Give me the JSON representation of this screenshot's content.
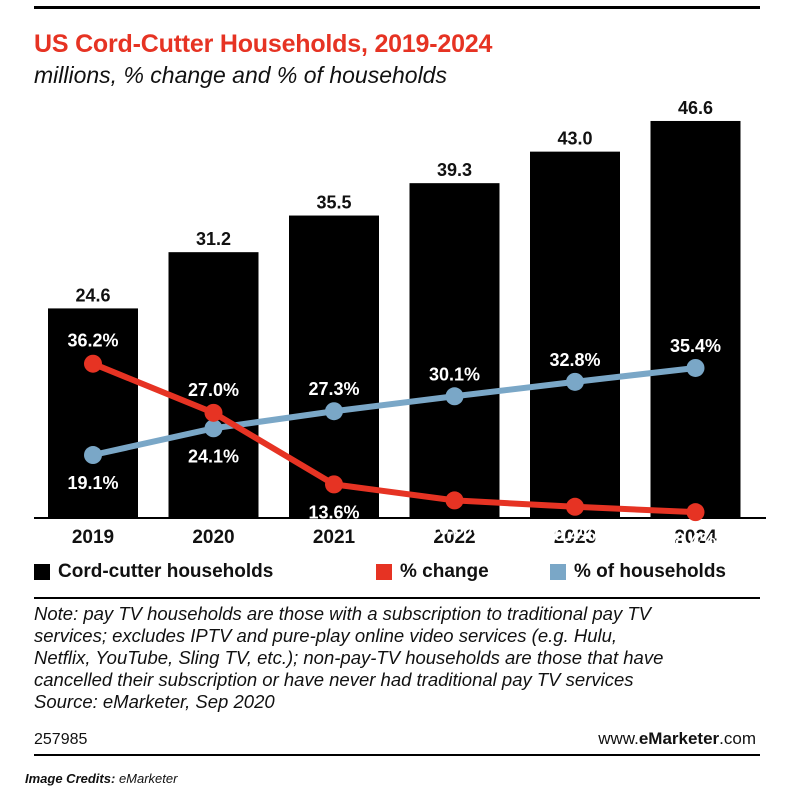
{
  "title": "US Cord-Cutter Households, 2019-2024",
  "subtitle": "millions, % change and % of households",
  "chart_data": {
    "type": "bar",
    "categories": [
      "2019",
      "2020",
      "2021",
      "2022",
      "2023",
      "2024"
    ],
    "series": [
      {
        "name": "Cord-cutter households",
        "kind": "bar",
        "color": "#000000",
        "values": [
          24.6,
          31.2,
          35.5,
          39.3,
          43.0,
          46.6
        ],
        "labels": [
          "24.6",
          "31.2",
          "35.5",
          "39.3",
          "43.0",
          "46.6"
        ]
      },
      {
        "name": "% change",
        "kind": "line",
        "color": "#e63323",
        "values": [
          36.2,
          27.0,
          13.6,
          10.6,
          9.4,
          8.4
        ],
        "labels": [
          "36.2%",
          "27.0%",
          "13.6%",
          "10.6%",
          "9.4%",
          "8.4%"
        ]
      },
      {
        "name": "% of households",
        "kind": "line",
        "color": "#7aa7c7",
        "values": [
          19.1,
          24.1,
          27.3,
          30.1,
          32.8,
          35.4
        ],
        "labels": [
          "19.1%",
          "24.1%",
          "27.3%",
          "30.1%",
          "32.8%",
          "35.4%"
        ]
      }
    ],
    "bar_ylim": [
      0,
      50
    ],
    "pct_ylim": [
      0,
      50
    ],
    "xlabel": "",
    "ylabel": ""
  },
  "legend": {
    "bars": "Cord-cutter households",
    "change": "% change",
    "share": "% of households"
  },
  "note_lines": [
    "Note: pay TV households are those with a subscription to traditional pay TV",
    "services; excludes IPTV and pure-play online video services (e.g. Hulu,",
    "Netflix, YouTube, Sling TV, etc.); non-pay-TV households are those that have",
    "cancelled their subscription or have never had traditional pay TV services",
    "Source: eMarketer, Sep 2020"
  ],
  "chart_id": "257985",
  "brand": {
    "prefix": "www.",
    "name": "eMarketer",
    "suffix": ".com"
  },
  "credits": {
    "label": "Image Credits:",
    "source": "eMarketer"
  },
  "colors": {
    "title": "#e63323",
    "bars": "#000000",
    "change": "#e63323",
    "share": "#7aa7c7"
  }
}
